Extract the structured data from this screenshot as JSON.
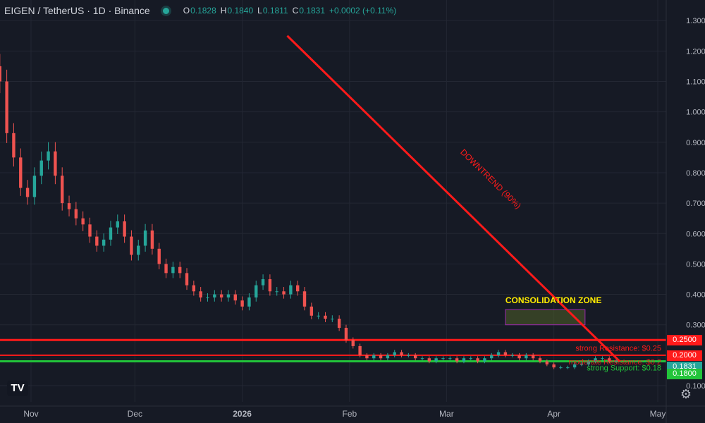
{
  "header": {
    "symbol_title": "EIGEN / TetherUS · 1D · Binance",
    "ohlc": [
      {
        "key": "O",
        "value": "0.1828"
      },
      {
        "key": "H",
        "value": "0.1840"
      },
      {
        "key": "L",
        "value": "0.1811"
      },
      {
        "key": "C",
        "value": "0.1831"
      }
    ],
    "change": "+0.0002 (+0.11%)"
  },
  "colors": {
    "background": "#161a25",
    "up": "#26a69a",
    "down": "#ef5350",
    "resistance": "#ff1a1a",
    "support": "#22c43a",
    "text": "#d1d4dc",
    "zone_label": "#ffeb00"
  },
  "price_axis": {
    "ticks": [
      "1.3000",
      "1.2000",
      "1.1000",
      "1.0000",
      "0.9000",
      "0.8000",
      "0.7000",
      "0.6000",
      "0.5000",
      "0.4000",
      "0.3000",
      "0.1000"
    ],
    "tag_values": [
      0.3,
      1.3,
      1.2,
      1.1,
      1.0,
      0.9,
      0.8,
      0.7,
      0.6,
      0.5,
      0.4,
      0.1
    ]
  },
  "time_axis": {
    "labels": [
      "Nov",
      "Dec",
      "2026",
      "Feb",
      "Mar",
      "Apr",
      "May"
    ]
  },
  "price_tags": [
    {
      "name": "resistance-price-tag",
      "value": "0.2500",
      "color": "#ff1a1a"
    },
    {
      "name": "moderate-resistance-price-tag",
      "value": "0.2000",
      "color": "#ff1a1a"
    },
    {
      "name": "last-price-tag",
      "value": "0.1831",
      "color": "#26a69a"
    },
    {
      "name": "support-price-tag",
      "value": "0.1800",
      "color": "#22c43a"
    }
  ],
  "annotations": {
    "downtrend_label": "DOWNTREND (90%)",
    "consolidation_label": "CONSOLIDATION ZONE",
    "strong_resistance_label": "strong Resistance: $0.25",
    "moderate_resistance_label": "moderate Resistance: $0.2",
    "strong_support_label": "strong Support: $0.18"
  },
  "chart_data": {
    "type": "candlestick",
    "title": "EIGEN / TetherUS · 1D · Binance",
    "y_scale": "linear",
    "grid": true,
    "x_labels": [
      "Nov",
      "Dec",
      "2026",
      "Feb",
      "Mar",
      "Apr",
      "May"
    ],
    "x_label_dates": [
      "2025-11-01",
      "2025-12-01",
      "2026-01-01",
      "2026-02-01",
      "2026-03-01",
      "2026-04-01",
      "2026-05-01"
    ],
    "ylim": [
      0.05,
      1.35
    ],
    "horizontal_levels": [
      {
        "label": "strong Resistance: $0.25",
        "price": 0.25
      },
      {
        "label": "moderate Resistance: $0.2",
        "price": 0.2
      },
      {
        "label": "strong Support: $0.18",
        "price": 0.18
      }
    ],
    "trendline": {
      "label": "DOWNTREND (90%)",
      "start": {
        "date": "2026-01-14",
        "price": 1.25
      },
      "end": {
        "date": "2026-04-20",
        "price": 0.18
      }
    },
    "consolidation_zone": {
      "label": "CONSOLIDATION ZONE",
      "date_from": "2026-03-18",
      "date_to": "2026-04-10",
      "price_from": 0.3,
      "price_to": 0.35
    },
    "closes": [
      {
        "date": "2025-10-15",
        "close": 1.06
      },
      {
        "date": "2025-10-17",
        "close": 1.12
      },
      {
        "date": "2025-10-19",
        "close": 1.2
      },
      {
        "date": "2025-10-21",
        "close": 1.15
      },
      {
        "date": "2025-10-23",
        "close": 1.1
      },
      {
        "date": "2025-10-25",
        "close": 0.93
      },
      {
        "date": "2025-10-27",
        "close": 0.85
      },
      {
        "date": "2025-10-29",
        "close": 0.75
      },
      {
        "date": "2025-10-31",
        "close": 0.72
      },
      {
        "date": "2025-11-02",
        "close": 0.79
      },
      {
        "date": "2025-11-04",
        "close": 0.84
      },
      {
        "date": "2025-11-06",
        "close": 0.87
      },
      {
        "date": "2025-11-08",
        "close": 0.79
      },
      {
        "date": "2025-11-10",
        "close": 0.7
      },
      {
        "date": "2025-11-12",
        "close": 0.68
      },
      {
        "date": "2025-11-14",
        "close": 0.65
      },
      {
        "date": "2025-11-16",
        "close": 0.63
      },
      {
        "date": "2025-11-18",
        "close": 0.59
      },
      {
        "date": "2025-11-20",
        "close": 0.56
      },
      {
        "date": "2025-11-22",
        "close": 0.58
      },
      {
        "date": "2025-11-24",
        "close": 0.62
      },
      {
        "date": "2025-11-26",
        "close": 0.64
      },
      {
        "date": "2025-11-28",
        "close": 0.59
      },
      {
        "date": "2025-11-30",
        "close": 0.53
      },
      {
        "date": "2025-12-02",
        "close": 0.56
      },
      {
        "date": "2025-12-04",
        "close": 0.61
      },
      {
        "date": "2025-12-06",
        "close": 0.55
      },
      {
        "date": "2025-12-08",
        "close": 0.5
      },
      {
        "date": "2025-12-10",
        "close": 0.47
      },
      {
        "date": "2025-12-12",
        "close": 0.49
      },
      {
        "date": "2025-12-14",
        "close": 0.47
      },
      {
        "date": "2025-12-16",
        "close": 0.43
      },
      {
        "date": "2025-12-18",
        "close": 0.41
      },
      {
        "date": "2025-12-20",
        "close": 0.39
      },
      {
        "date": "2025-12-22",
        "close": 0.39
      },
      {
        "date": "2025-12-24",
        "close": 0.4
      },
      {
        "date": "2025-12-26",
        "close": 0.39
      },
      {
        "date": "2025-12-28",
        "close": 0.4
      },
      {
        "date": "2025-12-30",
        "close": 0.38
      },
      {
        "date": "2026-01-01",
        "close": 0.36
      },
      {
        "date": "2026-01-03",
        "close": 0.39
      },
      {
        "date": "2026-01-05",
        "close": 0.43
      },
      {
        "date": "2026-01-07",
        "close": 0.45
      },
      {
        "date": "2026-01-09",
        "close": 0.41
      },
      {
        "date": "2026-01-11",
        "close": 0.41
      },
      {
        "date": "2026-01-13",
        "close": 0.4
      },
      {
        "date": "2026-01-15",
        "close": 0.43
      },
      {
        "date": "2026-01-17",
        "close": 0.41
      },
      {
        "date": "2026-01-19",
        "close": 0.36
      },
      {
        "date": "2026-01-21",
        "close": 0.33
      },
      {
        "date": "2026-01-23",
        "close": 0.33
      },
      {
        "date": "2026-01-25",
        "close": 0.32
      },
      {
        "date": "2026-01-27",
        "close": 0.32
      },
      {
        "date": "2026-01-29",
        "close": 0.29
      },
      {
        "date": "2026-01-31",
        "close": 0.25
      },
      {
        "date": "2026-02-02",
        "close": 0.23
      },
      {
        "date": "2026-02-04",
        "close": 0.2
      },
      {
        "date": "2026-02-06",
        "close": 0.19
      },
      {
        "date": "2026-02-08",
        "close": 0.2
      },
      {
        "date": "2026-02-10",
        "close": 0.19
      },
      {
        "date": "2026-02-12",
        "close": 0.2
      },
      {
        "date": "2026-02-14",
        "close": 0.21
      },
      {
        "date": "2026-02-16",
        "close": 0.2
      },
      {
        "date": "2026-02-18",
        "close": 0.2
      },
      {
        "date": "2026-02-20",
        "close": 0.19
      },
      {
        "date": "2026-02-22",
        "close": 0.19
      },
      {
        "date": "2026-02-24",
        "close": 0.18
      },
      {
        "date": "2026-02-26",
        "close": 0.19
      },
      {
        "date": "2026-02-28",
        "close": 0.19
      },
      {
        "date": "2026-03-02",
        "close": 0.19
      },
      {
        "date": "2026-03-04",
        "close": 0.18
      },
      {
        "date": "2026-03-06",
        "close": 0.19
      },
      {
        "date": "2026-03-08",
        "close": 0.19
      },
      {
        "date": "2026-03-10",
        "close": 0.18
      },
      {
        "date": "2026-03-12",
        "close": 0.19
      },
      {
        "date": "2026-03-14",
        "close": 0.2
      },
      {
        "date": "2026-03-16",
        "close": 0.21
      },
      {
        "date": "2026-03-18",
        "close": 0.2
      },
      {
        "date": "2026-03-20",
        "close": 0.2
      },
      {
        "date": "2026-03-22",
        "close": 0.19
      },
      {
        "date": "2026-03-24",
        "close": 0.2
      },
      {
        "date": "2026-03-26",
        "close": 0.19
      },
      {
        "date": "2026-03-28",
        "close": 0.18
      },
      {
        "date": "2026-03-30",
        "close": 0.17
      },
      {
        "date": "2026-04-01",
        "close": 0.16
      },
      {
        "date": "2026-04-03",
        "close": 0.16
      },
      {
        "date": "2026-04-05",
        "close": 0.16
      },
      {
        "date": "2026-04-07",
        "close": 0.17
      },
      {
        "date": "2026-04-09",
        "close": 0.17
      },
      {
        "date": "2026-04-11",
        "close": 0.18
      },
      {
        "date": "2026-04-13",
        "close": 0.19
      },
      {
        "date": "2026-04-15",
        "close": 0.19
      },
      {
        "date": "2026-04-17",
        "close": 0.18
      },
      {
        "date": "2026-04-19",
        "close": 0.1831
      }
    ]
  }
}
